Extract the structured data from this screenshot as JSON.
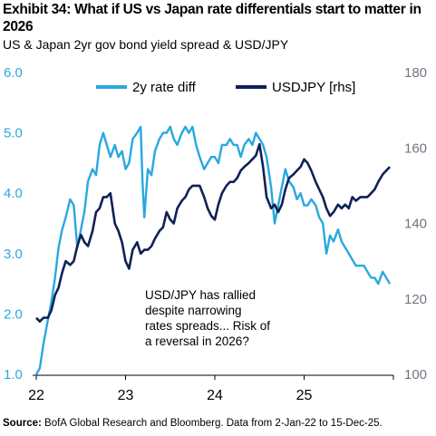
{
  "header": {
    "title": "Exhibit 34: What if US vs Japan rate differentials start to matter in 2026",
    "subtitle": "US & Japan 2yr gov bond yield spread & USD/JPY"
  },
  "source": {
    "label": "Source:",
    "text": " BofA Global Research and Bloomberg. Data from 2-Jan-22 to 15-Dec-25."
  },
  "colors": {
    "rate_diff": "#29a8e0",
    "usdjpy": "#0f2157"
  },
  "chart_data": {
    "type": "line",
    "title": "",
    "x_ticks": [
      "22",
      "23",
      "24",
      "25"
    ],
    "x_range": [
      2022.0,
      2026.0
    ],
    "y_left": {
      "ticks": [
        "6.0",
        "5.0",
        "4.0",
        "3.0",
        "2.0",
        "1.0"
      ],
      "range": [
        1.0,
        6.0
      ]
    },
    "y_right": {
      "ticks": [
        "180",
        "160",
        "140",
        "120",
        "100"
      ],
      "range": [
        100,
        180
      ]
    },
    "legend": {
      "placement": "top",
      "entries": [
        "2y rate diff",
        "USDJPY [rhs]"
      ]
    },
    "annotation": [
      "USD/JPY has rallied",
      "despite narrowing",
      "rates spreads... Risk of",
      "a reversal in 2026?"
    ],
    "series": [
      {
        "name": "2y rate diff",
        "axis": "left",
        "x": [
          2022.0,
          2022.04,
          2022.08,
          2022.13,
          2022.17,
          2022.21,
          2022.25,
          2022.29,
          2022.33,
          2022.38,
          2022.42,
          2022.46,
          2022.5,
          2022.54,
          2022.58,
          2022.63,
          2022.67,
          2022.71,
          2022.75,
          2022.79,
          2022.83,
          2022.88,
          2022.92,
          2022.96,
          2023.0,
          2023.04,
          2023.08,
          2023.13,
          2023.17,
          2023.19,
          2023.21,
          2023.25,
          2023.29,
          2023.33,
          2023.38,
          2023.42,
          2023.46,
          2023.5,
          2023.54,
          2023.58,
          2023.63,
          2023.67,
          2023.71,
          2023.75,
          2023.79,
          2023.83,
          2023.88,
          2023.92,
          2023.96,
          2024.0,
          2024.04,
          2024.08,
          2024.13,
          2024.17,
          2024.21,
          2024.25,
          2024.29,
          2024.33,
          2024.38,
          2024.42,
          2024.46,
          2024.5,
          2024.54,
          2024.58,
          2024.63,
          2024.67,
          2024.71,
          2024.75,
          2024.79,
          2024.83,
          2024.88,
          2024.92,
          2024.96,
          2025.0,
          2025.04,
          2025.08,
          2025.13,
          2025.17,
          2025.21,
          2025.25,
          2025.29,
          2025.33,
          2025.38,
          2025.42,
          2025.46,
          2025.5,
          2025.54,
          2025.58,
          2025.63,
          2025.67,
          2025.71,
          2025.75,
          2025.79,
          2025.83,
          2025.88,
          2025.92,
          2025.96
        ],
        "values": [
          1.0,
          1.1,
          1.5,
          1.9,
          2.2,
          2.6,
          3.1,
          3.4,
          3.6,
          3.9,
          3.8,
          3.1,
          3.4,
          3.7,
          4.2,
          4.4,
          4.3,
          4.8,
          5.0,
          4.8,
          4.6,
          4.8,
          4.6,
          4.7,
          4.4,
          4.5,
          4.9,
          5.0,
          5.1,
          4.2,
          3.6,
          4.4,
          4.3,
          4.7,
          4.9,
          5.0,
          5.0,
          5.1,
          4.9,
          4.8,
          5.0,
          5.1,
          5.0,
          5.1,
          4.8,
          4.6,
          4.4,
          4.5,
          4.6,
          4.6,
          4.5,
          4.8,
          4.8,
          4.9,
          4.8,
          4.8,
          4.6,
          4.8,
          4.9,
          4.8,
          5.0,
          4.9,
          4.8,
          4.6,
          4.1,
          3.5,
          3.8,
          4.1,
          4.4,
          4.2,
          4.1,
          3.9,
          4.0,
          3.8,
          3.8,
          3.9,
          3.8,
          3.6,
          3.5,
          3.0,
          3.3,
          3.2,
          3.4,
          3.2,
          3.1,
          3.0,
          2.9,
          2.8,
          2.8,
          2.8,
          2.7,
          2.6,
          2.6,
          2.5,
          2.7,
          2.6,
          2.5
        ]
      },
      {
        "name": "USDJPY [rhs]",
        "axis": "right",
        "x": [
          2022.0,
          2022.04,
          2022.08,
          2022.13,
          2022.17,
          2022.21,
          2022.25,
          2022.29,
          2022.33,
          2022.38,
          2022.42,
          2022.46,
          2022.5,
          2022.54,
          2022.58,
          2022.63,
          2022.67,
          2022.71,
          2022.75,
          2022.79,
          2022.83,
          2022.88,
          2022.92,
          2022.96,
          2023.0,
          2023.04,
          2023.08,
          2023.13,
          2023.17,
          2023.21,
          2023.25,
          2023.29,
          2023.33,
          2023.38,
          2023.42,
          2023.46,
          2023.5,
          2023.54,
          2023.58,
          2023.63,
          2023.67,
          2023.71,
          2023.75,
          2023.79,
          2023.83,
          2023.88,
          2023.92,
          2023.96,
          2024.0,
          2024.04,
          2024.08,
          2024.13,
          2024.17,
          2024.21,
          2024.25,
          2024.29,
          2024.33,
          2024.38,
          2024.42,
          2024.46,
          2024.5,
          2024.54,
          2024.58,
          2024.63,
          2024.67,
          2024.71,
          2024.75,
          2024.79,
          2024.83,
          2024.88,
          2024.92,
          2024.96,
          2025.0,
          2025.04,
          2025.08,
          2025.13,
          2025.17,
          2025.21,
          2025.25,
          2025.29,
          2025.33,
          2025.38,
          2025.42,
          2025.46,
          2025.5,
          2025.54,
          2025.58,
          2025.63,
          2025.67,
          2025.71,
          2025.75,
          2025.79,
          2025.83,
          2025.88,
          2025.92,
          2025.96
        ],
        "values": [
          115,
          114,
          115,
          115,
          117,
          121,
          123,
          127,
          130,
          129,
          130,
          134,
          137,
          135,
          134,
          138,
          143,
          144,
          147,
          147,
          148,
          140,
          138,
          135,
          130,
          128,
          133,
          135,
          132,
          133,
          133,
          134,
          136,
          138,
          139,
          143,
          141,
          140,
          144,
          146,
          147,
          149,
          150,
          150,
          150,
          147,
          144,
          142,
          141,
          145,
          148,
          150,
          151,
          151,
          152,
          154,
          155,
          156,
          157,
          158,
          161,
          155,
          147,
          144,
          145,
          143,
          145,
          149,
          152,
          153,
          154,
          155,
          157,
          156,
          154,
          151,
          149,
          147,
          144,
          142,
          143,
          145,
          144,
          145,
          144,
          147,
          146,
          147,
          147,
          147,
          148,
          149,
          151,
          153,
          154,
          155
        ]
      }
    ]
  }
}
